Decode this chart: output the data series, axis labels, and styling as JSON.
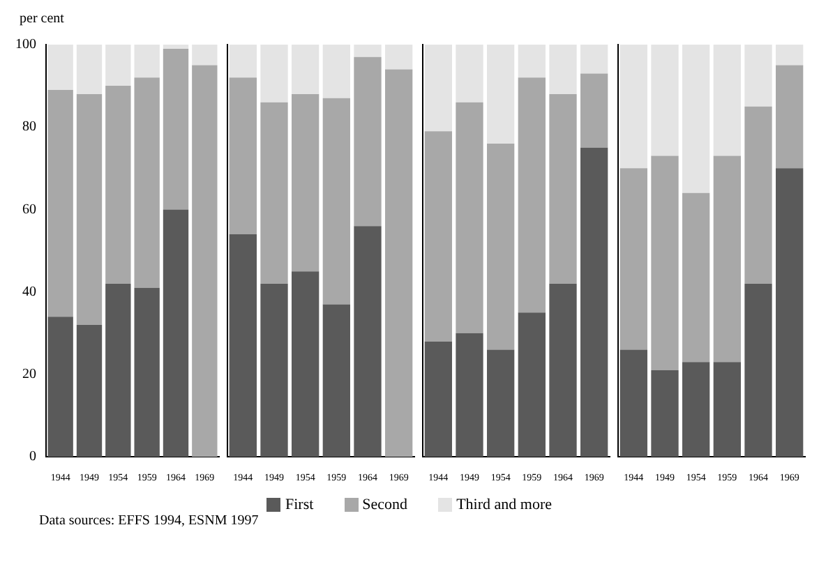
{
  "chart_data": [
    {
      "type": "bar",
      "ylabel": "per cent",
      "stacked": true,
      "legend": "bottom",
      "annotations": [
        "Data sources: EFFS 1994, ESNM 1997"
      ],
      "categories": [
        "1944",
        "1949",
        "1954",
        "1959",
        "1964",
        "1969"
      ],
      "ylim": [
        0,
        100
      ],
      "yticks": [
        0,
        20,
        40,
        60,
        80,
        100
      ],
      "series": [
        {
          "name": "First",
          "color": "#5a5a5a",
          "values": [
            34,
            32,
            42,
            41,
            60,
            null
          ]
        },
        {
          "name": "Second",
          "color": "#a8a8a8",
          "values": [
            55,
            56,
            48,
            51,
            39,
            95
          ]
        },
        {
          "name": "Third and more",
          "color": "#e4e4e4",
          "values": [
            11,
            12,
            10,
            8,
            1,
            5
          ]
        }
      ]
    },
    {
      "type": "bar",
      "stacked": true,
      "tick_labels": "x",
      "categories": [
        "1944",
        "1949",
        "1954",
        "1959",
        "1964",
        "1969"
      ],
      "ylim": [
        0,
        100
      ],
      "series": [
        {
          "color": "#5a5a5a",
          "values": [
            54,
            42,
            45,
            37,
            56,
            null
          ]
        },
        {
          "color": "#a8a8a8",
          "values": [
            38,
            44,
            43,
            50,
            41,
            94
          ]
        },
        {
          "color": "#e4e4e4",
          "values": [
            8,
            14,
            12,
            13,
            3,
            6
          ]
        }
      ]
    },
    {
      "type": "bar",
      "stacked": true,
      "tick_labels": "x",
      "categories": [
        "1944",
        "1949",
        "1954",
        "1959",
        "1964",
        "1969"
      ],
      "ylim": [
        0,
        100
      ],
      "series": [
        {
          "color": "#5a5a5a",
          "values": [
            28,
            30,
            26,
            35,
            42,
            75
          ]
        },
        {
          "color": "#a8a8a8",
          "values": [
            51,
            56,
            50,
            57,
            46,
            18
          ]
        },
        {
          "color": "#e4e4e4",
          "values": [
            21,
            14,
            24,
            8,
            12,
            7
          ]
        }
      ]
    },
    {
      "type": "bar",
      "stacked": true,
      "tick_labels": "x",
      "categories": [
        "1944",
        "1949",
        "1954",
        "1959",
        "1964",
        "1969"
      ],
      "ylim": [
        0,
        100
      ],
      "series": [
        {
          "color": "#5a5a5a",
          "values": [
            26,
            21,
            23,
            23,
            42,
            70
          ]
        },
        {
          "color": "#a8a8a8",
          "values": [
            44,
            52,
            41,
            50,
            43,
            25
          ]
        },
        {
          "color": "#e4e4e4",
          "values": [
            30,
            27,
            36,
            27,
            15,
            5
          ]
        }
      ]
    }
  ]
}
